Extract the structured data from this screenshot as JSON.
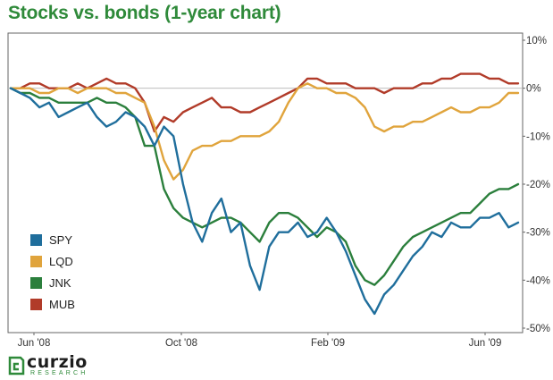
{
  "chart_data": {
    "type": "line",
    "title": "Stocks vs. bonds (1-year chart)",
    "xlabel": "",
    "ylabel": "",
    "x_ticks": [
      "Jun '08",
      "Oct '08",
      "Feb '09",
      "Jun '09"
    ],
    "y_ticks": [
      "10%",
      "0%",
      "-10%",
      "-20%",
      "-30%",
      "-40%",
      "-50%"
    ],
    "ylim": [
      -50,
      10
    ],
    "grid": "horizontal zero line only",
    "legend_position": "bottom-left",
    "x_unit": "weeks (Jun 2008 - Jun 2009)",
    "x": [
      0,
      1,
      2,
      3,
      4,
      5,
      6,
      7,
      8,
      9,
      10,
      11,
      12,
      13,
      14,
      15,
      16,
      17,
      18,
      19,
      20,
      21,
      22,
      23,
      24,
      25,
      26,
      27,
      28,
      29,
      30,
      31,
      32,
      33,
      34,
      35,
      36,
      37,
      38,
      39,
      40,
      41,
      42,
      43,
      44,
      45,
      46,
      47,
      48,
      49,
      50,
      51,
      52,
      53
    ],
    "series": [
      {
        "name": "SPY",
        "color": "#1f6e9c",
        "values": [
          0,
          -1,
          -2,
          -4,
          -3,
          -6,
          -5,
          -4,
          -3,
          -6,
          -8,
          -7,
          -5,
          -6,
          -8,
          -12,
          -8,
          -10,
          -20,
          -28,
          -32,
          -26,
          -23,
          -30,
          -28,
          -37,
          -42,
          -33,
          -30,
          -30,
          -28,
          -31,
          -30,
          -27,
          -30,
          -34,
          -39,
          -44,
          -47,
          -43,
          -41,
          -38,
          -35,
          -33,
          -30,
          -31,
          -28,
          -29,
          -29,
          -27,
          -27,
          -26,
          -29,
          -28
        ]
      },
      {
        "name": "LQD",
        "color": "#e0a43c",
        "values": [
          0,
          0,
          0,
          -1,
          -1,
          0,
          0,
          -1,
          0,
          0,
          0,
          -1,
          -1,
          -2,
          -3,
          -8,
          -15,
          -19,
          -17,
          -13,
          -12,
          -12,
          -11,
          -11,
          -10,
          -10,
          -10,
          -9,
          -7,
          -3,
          0,
          1,
          0,
          0,
          -1,
          -1,
          -2,
          -4,
          -8,
          -9,
          -8,
          -8,
          -7,
          -7,
          -6,
          -5,
          -4,
          -5,
          -5,
          -4,
          -4,
          -3,
          -1,
          -1
        ]
      },
      {
        "name": "JNK",
        "color": "#2b7f3c",
        "values": [
          0,
          -1,
          -1,
          -2,
          -2,
          -3,
          -3,
          -3,
          -3,
          -2,
          -3,
          -3,
          -4,
          -6,
          -12,
          -12,
          -21,
          -25,
          -27,
          -28,
          -29,
          -28,
          -27,
          -27,
          -28,
          -30,
          -32,
          -28,
          -26,
          -26,
          -27,
          -29,
          -31,
          -29,
          -30,
          -32,
          -37,
          -40,
          -41,
          -39,
          -36,
          -33,
          -31,
          -30,
          -29,
          -28,
          -27,
          -26,
          -26,
          -24,
          -22,
          -21,
          -21,
          -20
        ]
      },
      {
        "name": "MUB",
        "color": "#b13b29",
        "values": [
          0,
          0,
          1,
          1,
          0,
          0,
          0,
          1,
          0,
          1,
          2,
          1,
          1,
          0,
          -3,
          -9,
          -6,
          -7,
          -5,
          -4,
          -3,
          -2,
          -4,
          -4,
          -5,
          -5,
          -4,
          -3,
          -2,
          -1,
          0,
          2,
          2,
          1,
          1,
          1,
          0,
          0,
          0,
          -1,
          0,
          0,
          0,
          1,
          1,
          2,
          2,
          3,
          3,
          3,
          2,
          2,
          1,
          1
        ]
      }
    ]
  },
  "brand": {
    "wordmark": "curzio",
    "tagline": "RESEARCH",
    "accent": "#2f8a3a"
  }
}
